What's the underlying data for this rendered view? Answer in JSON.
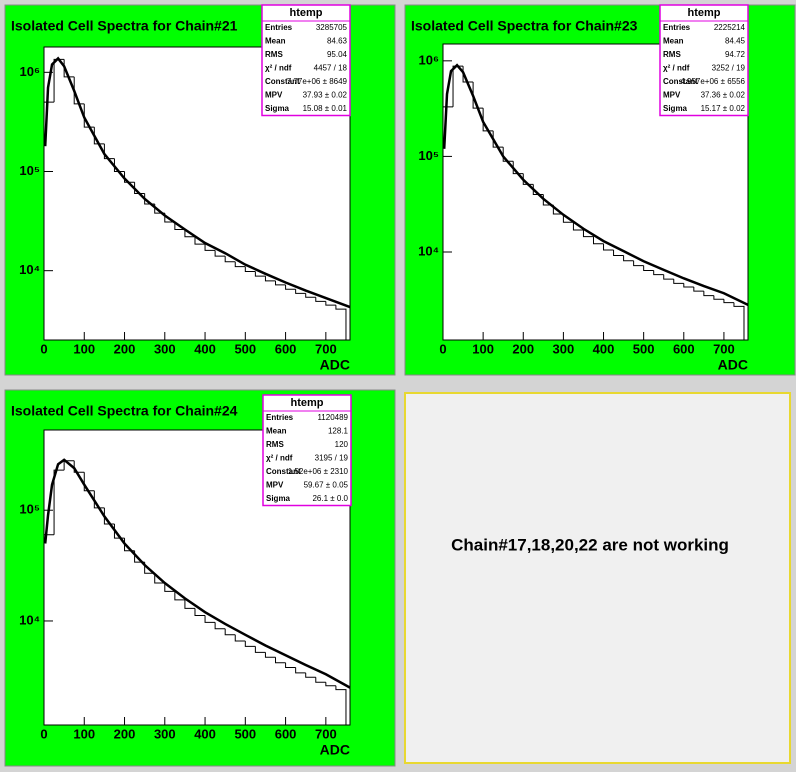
{
  "chart_data": [
    {
      "type": "histogram",
      "title": "Isolated Cell Spectra for Chain#21",
      "xlabel": "ADC",
      "log_y": true,
      "color": "#000000",
      "bins": [
        0,
        25,
        50,
        75,
        100,
        125,
        150,
        175,
        200,
        225,
        250,
        275,
        300,
        325,
        350,
        375,
        400,
        425,
        450,
        475,
        500,
        525,
        550,
        575,
        600,
        625,
        650,
        675,
        700,
        725,
        750
      ],
      "values": [
        500000,
        1350000,
        900000,
        480000,
        280000,
        190000,
        135000,
        100000,
        78000,
        60000,
        47000,
        38000,
        31000,
        26000,
        22000,
        18500,
        16000,
        14000,
        12300,
        11000,
        9800,
        8800,
        7900,
        7200,
        6500,
        5900,
        5400,
        4900,
        4500,
        4100
      ],
      "fit": {
        "x": [
          3,
          10,
          20,
          35,
          50,
          75,
          100,
          150,
          200,
          250,
          300,
          350,
          400,
          450,
          500,
          550,
          600,
          650,
          700,
          760
        ],
        "values": [
          180000,
          700000,
          1200000,
          1380000,
          1150000,
          650000,
          350000,
          150000,
          85000,
          53000,
          36000,
          26000,
          19000,
          15000,
          11500,
          9300,
          7600,
          6300,
          5300,
          4300
        ]
      },
      "xlim": [
        0,
        760
      ],
      "xticks": [
        0,
        100,
        200,
        300,
        400,
        500,
        600,
        700
      ],
      "ylim": [
        2000,
        1800000
      ],
      "yticks": [
        {
          "value": 10000,
          "label": "10⁴"
        },
        {
          "value": 100000,
          "label": "10⁵"
        },
        {
          "value": 1000000,
          "label": "10⁶"
        }
      ],
      "stats": {
        "title": "htemp",
        "rows": [
          [
            "Entries",
            "3285705"
          ],
          [
            "Mean",
            "84.63"
          ],
          [
            "RMS",
            "95.04"
          ],
          [
            "χ² / ndf",
            "4457 / 18"
          ],
          [
            "Constant",
            "7.77e+06 ± 8649"
          ],
          [
            "MPV",
            "37.93 ± 0.02"
          ],
          [
            "Sigma",
            "15.08 ± 0.01"
          ]
        ]
      }
    },
    {
      "type": "histogram",
      "title": "Isolated Cell Spectra for Chain#23",
      "xlabel": "ADC",
      "log_y": true,
      "color": "#000000",
      "bins": [
        0,
        25,
        50,
        75,
        100,
        125,
        150,
        175,
        200,
        225,
        250,
        275,
        300,
        325,
        350,
        375,
        400,
        425,
        450,
        475,
        500,
        525,
        550,
        575,
        600,
        625,
        650,
        675,
        700,
        725,
        750
      ],
      "values": [
        330000,
        880000,
        600000,
        320000,
        185000,
        125000,
        89000,
        66000,
        51000,
        40000,
        31000,
        25000,
        20500,
        17000,
        14500,
        12200,
        10500,
        9200,
        8100,
        7200,
        6400,
        5800,
        5200,
        4700,
        4300,
        3900,
        3500,
        3200,
        2950,
        2700
      ],
      "fit": {
        "x": [
          3,
          10,
          20,
          35,
          50,
          75,
          100,
          150,
          200,
          250,
          300,
          350,
          400,
          450,
          500,
          550,
          600,
          650,
          700,
          760
        ],
        "values": [
          120000,
          450000,
          780000,
          900000,
          760000,
          430000,
          230000,
          100000,
          57000,
          36000,
          24500,
          17500,
          13000,
          10200,
          8000,
          6500,
          5300,
          4400,
          3700,
          2800
        ]
      },
      "xlim": [
        0,
        760
      ],
      "xticks": [
        0,
        100,
        200,
        300,
        400,
        500,
        600,
        700
      ],
      "ylim": [
        1200,
        1500000
      ],
      "yticks": [
        {
          "value": 10000,
          "label": "10⁴"
        },
        {
          "value": 100000,
          "label": "10⁵"
        },
        {
          "value": 1000000,
          "label": "10⁶"
        }
      ],
      "stats": {
        "title": "htemp",
        "rows": [
          [
            "Entries",
            "2225214"
          ],
          [
            "Mean",
            "84.45"
          ],
          [
            "RMS",
            "94.72"
          ],
          [
            "χ² / ndf",
            "3252 / 19"
          ],
          [
            "Constant",
            "4.957e+06 ± 6556"
          ],
          [
            "MPV",
            "37.36 ± 0.02"
          ],
          [
            "Sigma",
            "15.17 ± 0.02"
          ]
        ]
      }
    },
    {
      "type": "histogram",
      "title": "Isolated Cell Spectra for Chain#24",
      "xlabel": "ADC",
      "log_y": true,
      "color": "#000000",
      "bins": [
        0,
        25,
        50,
        75,
        100,
        125,
        150,
        175,
        200,
        225,
        250,
        275,
        300,
        325,
        350,
        375,
        400,
        425,
        450,
        475,
        500,
        525,
        550,
        575,
        600,
        625,
        650,
        675,
        700,
        725,
        750
      ],
      "values": [
        60000,
        230000,
        280000,
        220000,
        150000,
        105000,
        75000,
        56000,
        43000,
        34000,
        27000,
        22000,
        18500,
        15500,
        13000,
        11200,
        9700,
        8500,
        7500,
        6600,
        5900,
        5200,
        4700,
        4200,
        3800,
        3400,
        3100,
        2800,
        2600,
        2400
      ],
      "fit": {
        "x": [
          3,
          10,
          20,
          35,
          50,
          75,
          100,
          150,
          200,
          250,
          300,
          350,
          400,
          450,
          500,
          550,
          600,
          650,
          700,
          760
        ],
        "values": [
          50000,
          90000,
          170000,
          260000,
          285000,
          240000,
          170000,
          88000,
          50000,
          32000,
          22000,
          16000,
          12000,
          9400,
          7500,
          6000,
          4900,
          4000,
          3300,
          2500
        ]
      },
      "xlim": [
        0,
        760
      ],
      "xticks": [
        0,
        100,
        200,
        300,
        400,
        500,
        600,
        700
      ],
      "ylim": [
        1150,
        530000
      ],
      "yticks": [
        {
          "value": 10000,
          "label": "10⁴"
        },
        {
          "value": 100000,
          "label": "10⁵"
        }
      ],
      "stats": {
        "title": "htemp",
        "rows": [
          [
            "Entries",
            "1120489"
          ],
          [
            "Mean",
            "128.1"
          ],
          [
            "RMS",
            "120"
          ],
          [
            "χ² / ndf",
            "3195 / 19"
          ],
          [
            "Constant",
            "1.52e+06 ± 2310"
          ],
          [
            "MPV",
            "59.67 ± 0.05"
          ],
          [
            "Sigma",
            "26.1 ± 0.0"
          ]
        ]
      }
    }
  ],
  "note": "Chain#17,18,20,22 are not working"
}
